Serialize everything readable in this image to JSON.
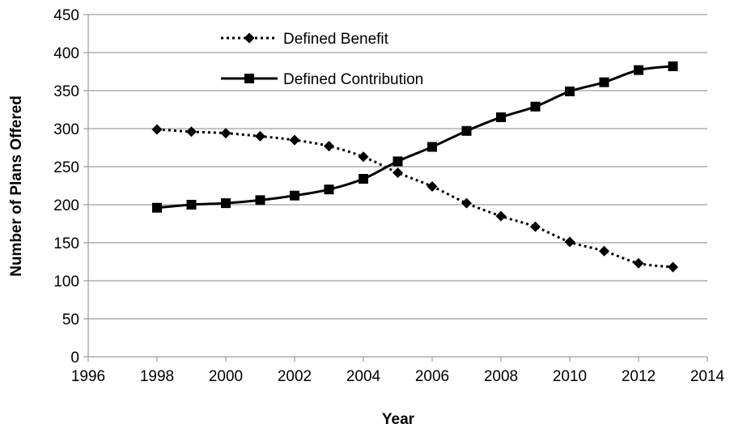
{
  "chart_data": {
    "type": "line",
    "title": "",
    "xlabel": "Year",
    "ylabel": "Number of Plans Offered",
    "xlim": [
      1996,
      2014
    ],
    "ylim": [
      0,
      450
    ],
    "xticks": [
      1996,
      1998,
      2000,
      2002,
      2004,
      2006,
      2008,
      2010,
      2012,
      2014
    ],
    "yticks": [
      0,
      50,
      100,
      150,
      200,
      250,
      300,
      350,
      400,
      450
    ],
    "grid": "horizontal",
    "legend_position": "top-left",
    "series": [
      {
        "name": "Defined Benefit",
        "line_style": "dotted",
        "marker": "diamond",
        "color": "#000000",
        "x": [
          1998,
          1999,
          2000,
          2001,
          2002,
          2003,
          2004,
          2005,
          2006,
          2007,
          2008,
          2009,
          2010,
          2011,
          2012,
          2013
        ],
        "y": [
          299,
          296,
          294,
          290,
          285,
          277,
          263,
          242,
          224,
          202,
          185,
          171,
          151,
          139,
          123,
          118
        ]
      },
      {
        "name": "Defined Contribution",
        "line_style": "solid",
        "marker": "square",
        "color": "#000000",
        "x": [
          1998,
          1999,
          2000,
          2001,
          2002,
          2003,
          2004,
          2005,
          2006,
          2007,
          2008,
          2009,
          2010,
          2011,
          2012,
          2013
        ],
        "y": [
          196,
          200,
          202,
          206,
          212,
          220,
          234,
          257,
          276,
          297,
          315,
          329,
          349,
          361,
          377,
          382
        ]
      }
    ]
  }
}
